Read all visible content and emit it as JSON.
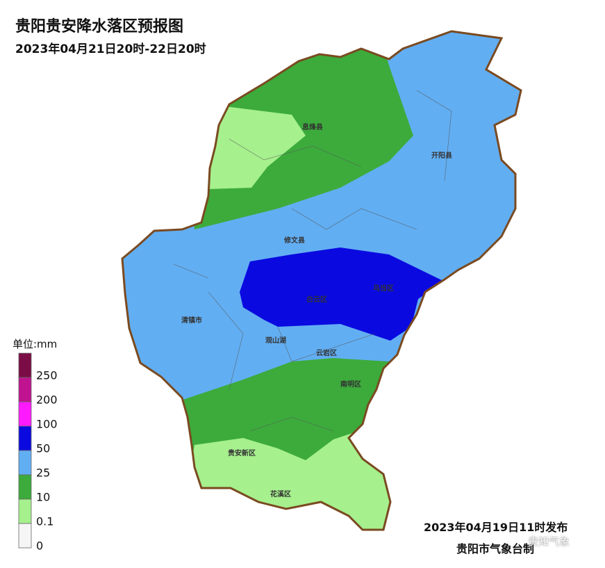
{
  "title": "贵阳贵安降水落区预报图",
  "subtitle": "2023年04月21日20时-22日20时",
  "legend": {
    "unit": "单位:mm",
    "items": [
      {
        "label": 250,
        "color": "#7a0d45"
      },
      {
        "label": 200,
        "color": "#c0138f"
      },
      {
        "label": 100,
        "color": "#ff1aff"
      },
      {
        "label": 50,
        "color": "#0a0ae0"
      },
      {
        "label": 25,
        "color": "#62aef2"
      },
      {
        "label": 10,
        "color": "#3cab3c"
      },
      {
        "label": 0.1,
        "color": "#a6f08e"
      },
      {
        "label": 0,
        "color": "#f5f5f5"
      }
    ]
  },
  "districts": [
    "息烽县",
    "开阳县",
    "修文县",
    "乌当区",
    "白云区",
    "清镇市",
    "观山湖",
    "云岩区",
    "南明区",
    "贵安新区",
    "花溪区"
  ],
  "footer": {
    "issued": "2023年04月19日11时发布",
    "agency": "贵阳市气象台制"
  },
  "watermark": "贵知气象"
}
